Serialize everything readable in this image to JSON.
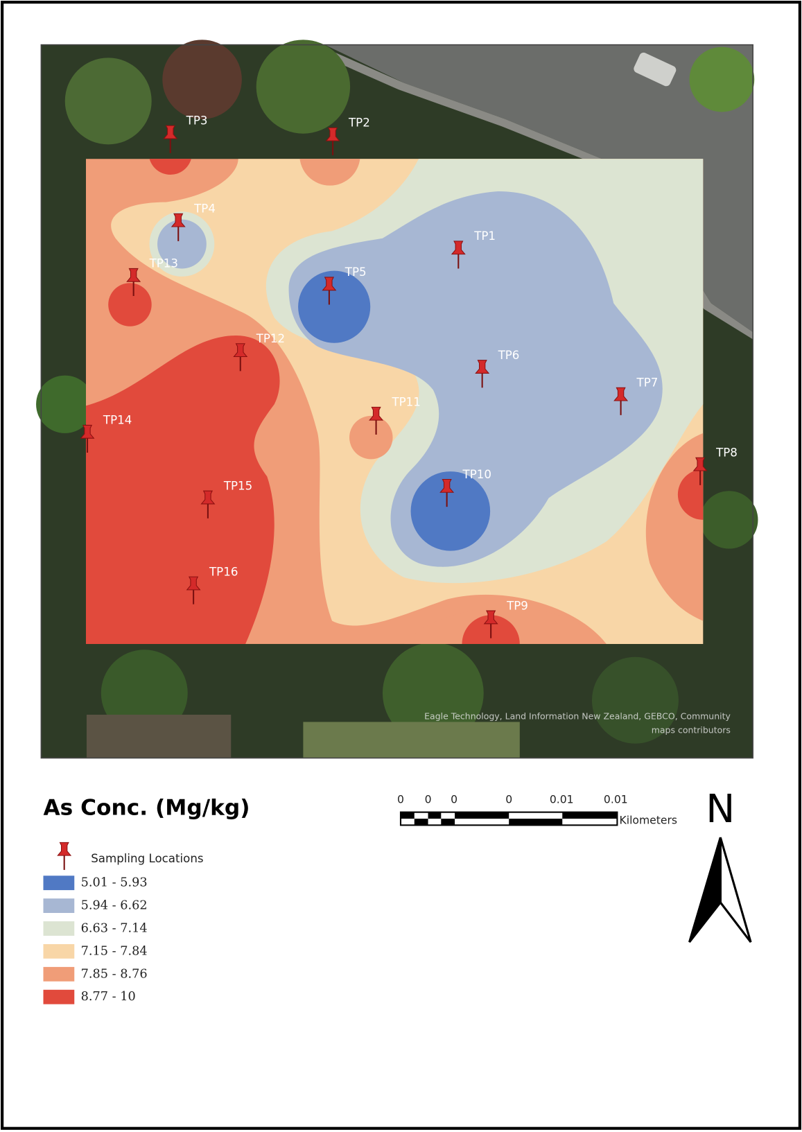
{
  "map": {
    "points": [
      {
        "label": "TP1"
      },
      {
        "label": "TP2"
      },
      {
        "label": "TP3"
      },
      {
        "label": "TP4"
      },
      {
        "label": "TP5"
      },
      {
        "label": "TP6"
      },
      {
        "label": "TP7"
      },
      {
        "label": "TP8"
      },
      {
        "label": "TP9"
      },
      {
        "label": "TP10"
      },
      {
        "label": "TP11"
      },
      {
        "label": "TP12"
      },
      {
        "label": "TP13"
      },
      {
        "label": "TP14"
      },
      {
        "label": "TP15"
      },
      {
        "label": "TP16"
      }
    ],
    "attribution": [
      "Eagle Technology, Land Information New Zealand, GEBCO, Community",
      "maps contributors"
    ]
  },
  "legend": {
    "title": "As Conc. (Mg/kg)",
    "sampling": "Sampling Locations",
    "pin_color": "#d42a2a",
    "classes": [
      {
        "label": "5.01 - 5.93",
        "color": "#5079c4"
      },
      {
        "label": "5.94 - 6.62",
        "color": "#a7b7d3"
      },
      {
        "label": "6.63 - 7.14",
        "color": "#dce4d2"
      },
      {
        "label": "7.15 - 7.84",
        "color": "#f8d6a7"
      },
      {
        "label": "7.85 - 8.76",
        "color": "#f09d78"
      },
      {
        "label": "8.77 - 10",
        "color": "#e14a3c"
      }
    ]
  },
  "scale_bar": {
    "labels": [
      "0",
      "0",
      "0",
      "0",
      "0.01",
      "0.01"
    ],
    "unit": "Kilometers"
  },
  "north": "N"
}
